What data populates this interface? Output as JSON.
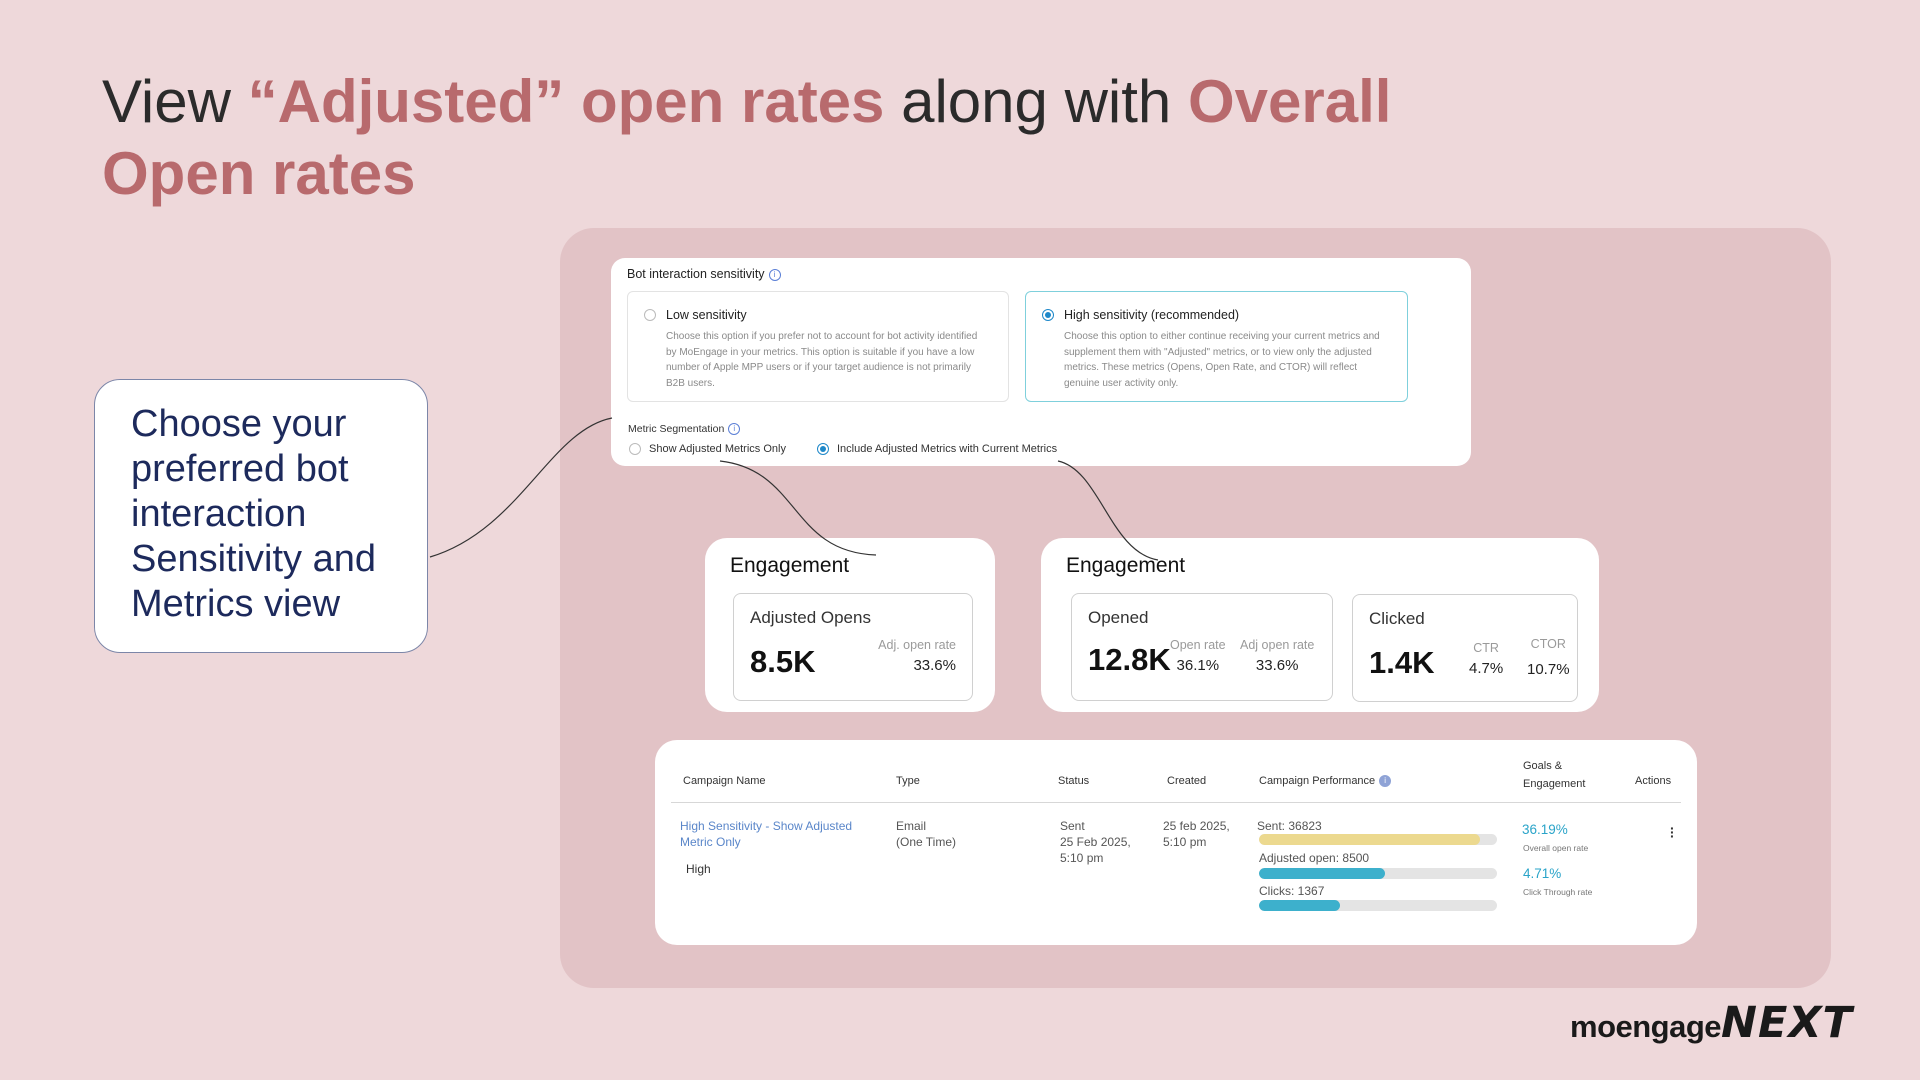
{
  "title": {
    "part1": "View ",
    "part2": "“Adjusted” open rates",
    "part3": " along with ",
    "part4": "Overall Open rates"
  },
  "callout": {
    "text": "Choose your preferred bot interaction Sensitivity and Metrics view"
  },
  "settings": {
    "header": "Bot interaction sensitivity",
    "options": [
      {
        "label": "Low sensitivity",
        "description": "Choose this option if you prefer not to account for bot activity identified by MoEngage in your metrics. This option is suitable if you have a low number of Apple MPP users or if your target audience is not primarily B2B users.",
        "selected": false
      },
      {
        "label": "High sensitivity (recommended)",
        "description": "Choose this option to either continue receiving your current metrics and supplement them with \"Adjusted\" metrics, or to view only the adjusted metrics. These metrics (Opens, Open Rate, and CTOR) will reflect genuine user activity only.",
        "selected": true
      }
    ],
    "segmentation_header": "Metric Segmentation",
    "segmentation_options": [
      {
        "label": "Show Adjusted Metrics Only",
        "selected": false
      },
      {
        "label": "Include Adjusted Metrics with Current Metrics",
        "selected": true
      }
    ]
  },
  "engagement_left": {
    "title": "Engagement",
    "metric": {
      "label": "Adjusted Opens",
      "value": "8.5K",
      "sub_label": "Adj. open rate",
      "sub_value": "33.6%"
    }
  },
  "engagement_right": {
    "title": "Engagement",
    "opened": {
      "label": "Opened",
      "value": "12.8K",
      "open_rate_label": "Open rate",
      "open_rate_value": "36.1%",
      "adj_label": "Adj open rate",
      "adj_value": "33.6%"
    },
    "clicked": {
      "label": "Clicked",
      "value": "1.4K",
      "ctr_label": "CTR",
      "ctr_value": "4.7%",
      "ctor_label": "CTOR",
      "ctor_value": "10.7%"
    }
  },
  "table": {
    "headers": {
      "name": "Campaign Name",
      "type": "Type",
      "status": "Status",
      "created": "Created",
      "performance": "Campaign Performance",
      "goals1": "Goals &",
      "goals2": "Engagement",
      "actions": "Actions"
    },
    "row": {
      "name_line1": "High Sensitivity - Show Adjusted",
      "name_line2": "Metric Only",
      "tag": "High",
      "type_line1": "Email",
      "type_line2": "(One Time)",
      "status_line1": "Sent",
      "status_line2": "25 Feb 2025,",
      "status_line3": "5:10 pm",
      "created_line1": "25 feb 2025,",
      "created_line2": "5:10 pm",
      "perf": [
        {
          "label": "Sent: 36823",
          "fill": 0.93,
          "color": "#ecd98f"
        },
        {
          "label": "Adjusted open: 8500",
          "fill": 0.53,
          "color": "#3db0cc"
        },
        {
          "label": "Clicks: 1367",
          "fill": 0.34,
          "color": "#3db0cc"
        }
      ],
      "goal1_value": "36.19%",
      "goal1_label": "Overall open rate",
      "goal2_value": "4.71%",
      "goal2_label": "Click Through rate",
      "actions_icon": "kebab-menu-icon"
    }
  },
  "logo": {
    "part1": "moengage",
    "part2": "NEXT"
  }
}
